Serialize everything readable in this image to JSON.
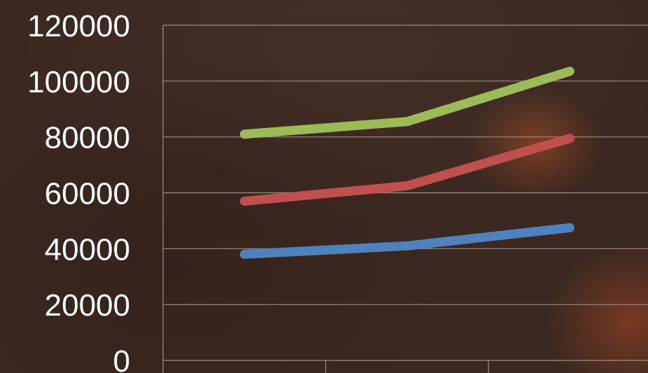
{
  "chart_data": {
    "type": "line",
    "categories": [
      "",
      "",
      ""
    ],
    "series": [
      {
        "values": [
          38000,
          41000,
          47500
        ],
        "color": "#4f81bd"
      },
      {
        "values": [
          57000,
          62500,
          79500
        ],
        "color": "#c0504d"
      },
      {
        "values": [
          81000,
          85500,
          103500
        ],
        "color": "#9bbb59"
      }
    ],
    "ylim": [
      0,
      120000
    ],
    "yticks": [
      "0",
      "20000",
      "40000",
      "60000",
      "80000",
      "100000",
      "120000"
    ],
    "grid": true,
    "legend": "none"
  }
}
